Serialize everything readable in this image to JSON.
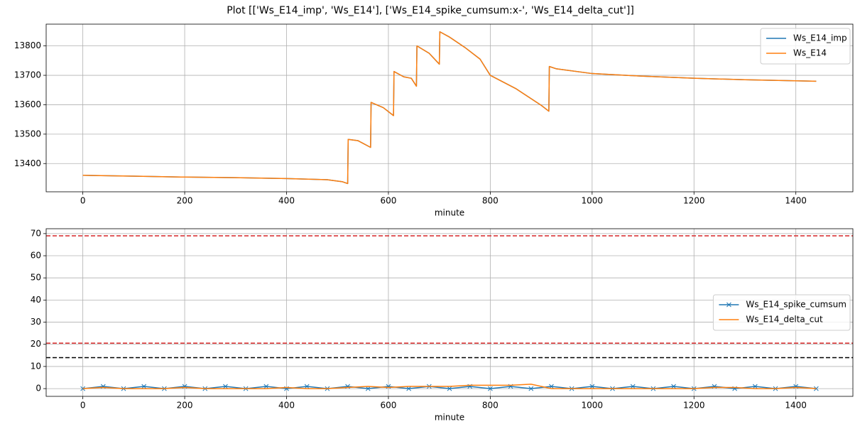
{
  "title": "Plot [['Ws_E14_imp', 'Ws_E14'], ['Ws_E14_spike_cumsum:x-', 'Ws_E14_delta_cut']]",
  "chart_data": [
    {
      "type": "line",
      "xlabel": "minute",
      "x": [
        0,
        100,
        200,
        300,
        400,
        480,
        510,
        520,
        521,
        540,
        565,
        566,
        590,
        610,
        611,
        630,
        645,
        655,
        656,
        680,
        700,
        701,
        720,
        750,
        780,
        800,
        850,
        900,
        915,
        916,
        930,
        1000,
        1100,
        1200,
        1300,
        1440
      ],
      "series": [
        {
          "name": "Ws_E14_imp",
          "color": "#1f77b4",
          "values": [
            13360,
            13357,
            13354,
            13352,
            13349,
            13345,
            13338,
            13332,
            13482,
            13478,
            13455,
            13608,
            13590,
            13563,
            13713,
            13695,
            13690,
            13663,
            13800,
            13775,
            13738,
            13848,
            13830,
            13795,
            13755,
            13700,
            13655,
            13598,
            13578,
            13730,
            13722,
            13706,
            13697,
            13690,
            13685,
            13680
          ]
        },
        {
          "name": "Ws_E14",
          "color": "#ff7f0e",
          "values": [
            13360,
            13357,
            13354,
            13352,
            13349,
            13345,
            13338,
            13332,
            13482,
            13478,
            13455,
            13608,
            13590,
            13563,
            13713,
            13695,
            13690,
            13663,
            13800,
            13775,
            13738,
            13848,
            13830,
            13795,
            13755,
            13700,
            13655,
            13598,
            13578,
            13730,
            13722,
            13706,
            13697,
            13690,
            13685,
            13680
          ]
        }
      ],
      "xlim": [
        -72,
        1512
      ],
      "ylim": [
        13304,
        13874
      ],
      "xticks": [
        0,
        200,
        400,
        600,
        800,
        1000,
        1200,
        1400
      ],
      "yticks": [
        13400,
        13500,
        13600,
        13700,
        13800
      ],
      "grid": true,
      "legend": "upper right"
    },
    {
      "type": "line",
      "xlabel": "minute",
      "x": [
        0,
        40,
        80,
        120,
        160,
        200,
        240,
        280,
        320,
        360,
        400,
        440,
        480,
        520,
        560,
        600,
        640,
        680,
        720,
        760,
        800,
        840,
        880,
        920,
        960,
        1000,
        1040,
        1080,
        1120,
        1160,
        1200,
        1240,
        1280,
        1320,
        1360,
        1400,
        1440
      ],
      "series": [
        {
          "name": "Ws_E14_spike_cumsum",
          "color": "#1f77b4",
          "marker": "x",
          "values": [
            0,
            1,
            0,
            1,
            0,
            1,
            0,
            1,
            0,
            1,
            0,
            1,
            0,
            1,
            0,
            1,
            0,
            1,
            0,
            1,
            0,
            1,
            0,
            1,
            0,
            1,
            0,
            1,
            0,
            1,
            0,
            1,
            0,
            1,
            0,
            1,
            0
          ]
        },
        {
          "name": "Ws_E14_delta_cut",
          "color": "#ff7f0e",
          "values": [
            0,
            0.5,
            0,
            0,
            0,
            0.5,
            0,
            0,
            0,
            0,
            0.5,
            0,
            0,
            0.5,
            1,
            0.5,
            1,
            1,
            1,
            1.5,
            1.5,
            1.5,
            2,
            0,
            0,
            0,
            0,
            0,
            0,
            0,
            0,
            0.5,
            0.5,
            0,
            0,
            0.5,
            0
          ]
        }
      ],
      "hlines": [
        {
          "value": 69,
          "color": "#d62728"
        },
        {
          "value": 20.5,
          "color": "#d62728"
        },
        {
          "value": 14,
          "color": "#000000"
        }
      ],
      "xlim": [
        -72,
        1512
      ],
      "ylim": [
        -3.5,
        72.2
      ],
      "xticks": [
        0,
        200,
        400,
        600,
        800,
        1000,
        1200,
        1400
      ],
      "yticks": [
        0,
        10,
        20,
        30,
        40,
        50,
        60,
        70
      ],
      "grid": true,
      "legend": "center right"
    }
  ]
}
